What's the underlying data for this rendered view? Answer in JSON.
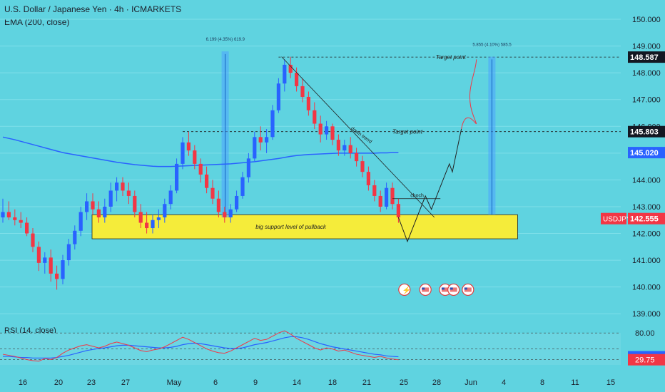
{
  "header": {
    "symbol_line": "U.S. Dollar / Japanese Yen · 4h · ICMARKETS",
    "ema_line": "EMA (200, close)",
    "rsi_line": "RSI (14, close)"
  },
  "colors": {
    "background": "#5fd3e0",
    "bull": "#2962ff",
    "bear": "#f23645",
    "ema": "#2962ff",
    "rsi_line": "#f23645",
    "rsi_ma": "#2962ff",
    "support_zone": "#f5ec3a",
    "measure": "#4da3ff",
    "target_path": "#f23645"
  },
  "chart_data": [
    {
      "type": "candlestick",
      "title": "U.S. Dollar / Japanese Yen · 4h · ICMARKETS",
      "y_axis_ticks": [
        150.0,
        149.0,
        148.0,
        147.0,
        146.0,
        145.0,
        144.0,
        143.0,
        142.0,
        141.0,
        140.0,
        139.0
      ],
      "ylim": [
        138.9,
        150.4
      ],
      "x_tick_labels": [
        "16",
        "20",
        "23",
        "27",
        "May",
        "6",
        "9",
        "14",
        "18",
        "21",
        "25",
        "28",
        "Jun",
        "4",
        "8",
        "11",
        "15"
      ],
      "price_labels": [
        {
          "value": "148.587",
          "style": "dark"
        },
        {
          "value": "145.803",
          "style": "dark"
        },
        {
          "value": "145.020",
          "style": "blue"
        },
        {
          "value": "142.555",
          "style": "red",
          "ticker": "USDJPY"
        }
      ],
      "annotations": {
        "target_1": "Target point",
        "target_2": "Target point",
        "support": "big support level of pullback",
        "downtrend": "down trend",
        "choch": "choch",
        "measure_1": "6.199 (4.35%) 619.9",
        "measure_2": "5.855 (4.10%) 585.5"
      },
      "levels": {
        "target_high": 148.587,
        "target_mid": 145.803,
        "support_top": 142.7,
        "support_bottom": 141.8
      },
      "ohlc": [
        [
          142.6,
          143.3,
          142.4,
          142.8
        ],
        [
          142.8,
          143.2,
          142.5,
          142.6
        ],
        [
          142.6,
          142.9,
          142.3,
          142.5
        ],
        [
          142.5,
          142.8,
          142.2,
          142.4
        ],
        [
          142.4,
          142.6,
          141.9,
          142.0
        ],
        [
          142.0,
          142.2,
          141.3,
          141.5
        ],
        [
          141.5,
          141.7,
          140.6,
          140.9
        ],
        [
          140.9,
          141.3,
          140.5,
          141.1
        ],
        [
          141.1,
          141.4,
          140.2,
          140.5
        ],
        [
          140.5,
          140.8,
          139.9,
          140.3
        ],
        [
          140.3,
          141.2,
          140.1,
          141.0
        ],
        [
          141.0,
          141.8,
          140.8,
          141.6
        ],
        [
          141.6,
          142.3,
          141.4,
          142.1
        ],
        [
          142.1,
          143.0,
          141.9,
          142.8
        ],
        [
          142.8,
          143.5,
          142.5,
          143.2
        ],
        [
          143.2,
          143.5,
          142.7,
          142.9
        ],
        [
          142.9,
          143.2,
          142.4,
          142.6
        ],
        [
          142.6,
          143.3,
          142.4,
          143.0
        ],
        [
          143.0,
          143.9,
          142.8,
          143.6
        ],
        [
          143.6,
          144.1,
          143.2,
          143.9
        ],
        [
          143.9,
          144.1,
          143.4,
          143.6
        ],
        [
          143.6,
          143.9,
          143.1,
          143.4
        ],
        [
          143.4,
          143.6,
          142.6,
          142.8
        ],
        [
          142.8,
          143.1,
          142.2,
          142.4
        ],
        [
          142.4,
          142.8,
          142.0,
          142.2
        ],
        [
          142.2,
          142.7,
          142.0,
          142.5
        ],
        [
          142.5,
          142.9,
          142.2,
          142.6
        ],
        [
          142.6,
          143.3,
          142.4,
          143.1
        ],
        [
          143.1,
          143.8,
          142.9,
          143.6
        ],
        [
          143.6,
          144.8,
          143.5,
          144.6
        ],
        [
          144.6,
          145.6,
          144.4,
          145.4
        ],
        [
          145.4,
          145.8,
          144.9,
          145.1
        ],
        [
          145.1,
          145.3,
          144.4,
          144.6
        ],
        [
          144.6,
          144.8,
          143.9,
          144.2
        ],
        [
          144.2,
          144.5,
          143.5,
          143.7
        ],
        [
          143.7,
          144.0,
          143.1,
          143.3
        ],
        [
          143.3,
          143.6,
          142.6,
          142.8
        ],
        [
          142.8,
          143.0,
          142.4,
          142.6
        ],
        [
          142.6,
          143.1,
          142.4,
          142.9
        ],
        [
          142.9,
          143.6,
          142.8,
          143.4
        ],
        [
          143.4,
          144.3,
          143.3,
          144.1
        ],
        [
          144.1,
          145.0,
          143.9,
          144.8
        ],
        [
          144.8,
          145.8,
          144.7,
          145.6
        ],
        [
          145.6,
          146.0,
          145.1,
          145.4
        ],
        [
          145.4,
          145.9,
          145.0,
          145.6
        ],
        [
          145.6,
          146.8,
          145.5,
          146.6
        ],
        [
          146.6,
          147.8,
          146.5,
          147.6
        ],
        [
          147.6,
          148.5,
          147.3,
          148.3
        ],
        [
          148.3,
          148.6,
          147.8,
          148.0
        ],
        [
          148.0,
          148.2,
          147.3,
          147.5
        ],
        [
          147.5,
          147.8,
          146.9,
          147.1
        ],
        [
          147.1,
          147.3,
          146.4,
          146.6
        ],
        [
          146.6,
          146.9,
          145.9,
          146.1
        ],
        [
          146.1,
          146.4,
          145.4,
          145.7
        ],
        [
          145.7,
          146.2,
          145.5,
          146.0
        ],
        [
          146.0,
          146.1,
          145.3,
          145.5
        ],
        [
          145.5,
          145.7,
          144.9,
          145.1
        ],
        [
          145.1,
          145.5,
          144.9,
          145.3
        ],
        [
          145.3,
          145.6,
          144.8,
          145.0
        ],
        [
          145.0,
          145.2,
          144.5,
          144.7
        ],
        [
          144.7,
          144.9,
          144.1,
          144.3
        ],
        [
          144.3,
          144.5,
          143.6,
          143.8
        ],
        [
          143.8,
          144.0,
          143.2,
          143.4
        ],
        [
          143.4,
          143.6,
          142.8,
          143.0
        ],
        [
          143.0,
          143.9,
          142.9,
          143.7
        ],
        [
          143.7,
          143.9,
          142.9,
          143.1
        ],
        [
          143.1,
          143.3,
          142.4,
          142.6
        ]
      ],
      "ema": [
        145.6,
        145.55,
        145.5,
        145.44,
        145.38,
        145.32,
        145.26,
        145.2,
        145.14,
        145.08,
        145.02,
        144.98,
        144.94,
        144.9,
        144.86,
        144.82,
        144.78,
        144.74,
        144.7,
        144.66,
        144.63,
        144.6,
        144.57,
        144.55,
        144.53,
        144.51,
        144.5,
        144.5,
        144.5,
        144.51,
        144.52,
        144.53,
        144.54,
        144.55,
        144.56,
        144.57,
        144.58,
        144.59,
        144.6,
        144.62,
        144.64,
        144.66,
        144.68,
        144.71,
        144.74,
        144.77,
        144.8,
        144.84,
        144.88,
        144.91,
        144.93,
        144.95,
        144.96,
        144.97,
        144.98,
        144.99,
        145.0,
        145.0,
        145.0,
        145.0,
        145.0,
        145.0,
        145.0,
        145.01,
        145.01,
        145.02,
        145.02
      ],
      "projection": [
        {
          "t": 66,
          "p": 142.6
        },
        {
          "t": 67.5,
          "p": 141.7
        },
        {
          "t": 70.5,
          "p": 143.4
        },
        {
          "t": 71.5,
          "p": 142.9
        },
        {
          "t": 74.5,
          "p": 144.6
        },
        {
          "t": 75,
          "p": 144.3
        },
        {
          "t": 76.5,
          "p": 145.9
        }
      ]
    },
    {
      "type": "line",
      "title": "RSI (14, close)",
      "y_axis_ticks": [
        80.0,
        35.32,
        29.75
      ],
      "ylim": [
        20,
        95
      ],
      "rsi": [
        40,
        38,
        36,
        33,
        30,
        28,
        27,
        32,
        30,
        34,
        42,
        48,
        52,
        56,
        58,
        55,
        52,
        55,
        60,
        63,
        60,
        57,
        52,
        47,
        45,
        48,
        50,
        54,
        60,
        66,
        72,
        68,
        62,
        56,
        50,
        46,
        43,
        42,
        46,
        52,
        58,
        64,
        70,
        66,
        68,
        74,
        80,
        84,
        78,
        70,
        64,
        58,
        52,
        48,
        52,
        50,
        46,
        48,
        44,
        40,
        38,
        36,
        34,
        36,
        33,
        31,
        29.75
      ],
      "rsi_ma": [
        36,
        36,
        35,
        34,
        34,
        33,
        33,
        33,
        33,
        34,
        36,
        38,
        41,
        44,
        47,
        49,
        51,
        52,
        54,
        56,
        57,
        57,
        56,
        55,
        54,
        53,
        52,
        52,
        53,
        55,
        58,
        60,
        61,
        60,
        58,
        56,
        54,
        52,
        51,
        51,
        52,
        55,
        58,
        60,
        62,
        65,
        68,
        71,
        73,
        73,
        71,
        68,
        64,
        60,
        57,
        54,
        52,
        50,
        48,
        46,
        44,
        42,
        40,
        39,
        37,
        36,
        35.32
      ]
    }
  ]
}
